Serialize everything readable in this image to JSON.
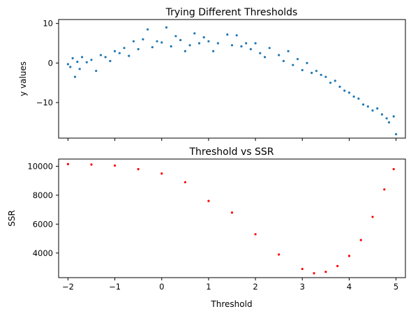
{
  "chart_data": [
    {
      "type": "scatter",
      "title": "Trying Different Thresholds",
      "xlabel": "",
      "ylabel": "y values",
      "xlim": [
        -2.2,
        5.2
      ],
      "ylim": [
        -19,
        11
      ],
      "xticks": [
        -2,
        -1,
        0,
        1,
        2,
        3,
        4,
        5
      ],
      "xtick_labels_visible": false,
      "yticks": [
        -10,
        0,
        10
      ],
      "ytick_labels": [
        "−10",
        "0",
        "10"
      ],
      "grid": false,
      "marker_color": "#1f77b4",
      "trend": "noisy inverted parabola: y ≈ 5.5 − 0.75·(x − 1)², noise ±2.5",
      "points": [
        [
          -2.0,
          -0.3
        ],
        [
          -1.95,
          -1.0
        ],
        [
          -1.9,
          1.2
        ],
        [
          -1.85,
          -3.5
        ],
        [
          -1.8,
          0.3
        ],
        [
          -1.75,
          -1.5
        ],
        [
          -1.7,
          1.5
        ],
        [
          -1.6,
          0.2
        ],
        [
          -1.5,
          0.8
        ],
        [
          -1.4,
          -2.0
        ],
        [
          -1.3,
          2.0
        ],
        [
          -1.2,
          1.5
        ],
        [
          -1.1,
          0.5
        ],
        [
          -1.0,
          3.0
        ],
        [
          -0.9,
          2.5
        ],
        [
          -0.8,
          3.8
        ],
        [
          -0.7,
          1.8
        ],
        [
          -0.6,
          5.5
        ],
        [
          -0.5,
          3.5
        ],
        [
          -0.4,
          6.0
        ],
        [
          -0.3,
          8.5
        ],
        [
          -0.2,
          4.0
        ],
        [
          -0.1,
          5.5
        ],
        [
          0.0,
          5.2
        ],
        [
          0.1,
          9.0
        ],
        [
          0.2,
          4.2
        ],
        [
          0.3,
          6.8
        ],
        [
          0.4,
          5.8
        ],
        [
          0.5,
          3.0
        ],
        [
          0.6,
          4.5
        ],
        [
          0.7,
          7.5
        ],
        [
          0.8,
          5.0
        ],
        [
          0.9,
          6.5
        ],
        [
          1.0,
          5.5
        ],
        [
          1.1,
          3.0
        ],
        [
          1.2,
          5.0
        ],
        [
          1.4,
          7.2
        ],
        [
          1.5,
          4.5
        ],
        [
          1.6,
          7.0
        ],
        [
          1.7,
          4.2
        ],
        [
          1.8,
          5.0
        ],
        [
          1.9,
          3.5
        ],
        [
          2.0,
          5.0
        ],
        [
          2.1,
          2.5
        ],
        [
          2.2,
          1.5
        ],
        [
          2.3,
          3.8
        ],
        [
          2.5,
          2.0
        ],
        [
          2.6,
          0.5
        ],
        [
          2.7,
          3.0
        ],
        [
          2.8,
          -0.5
        ],
        [
          2.9,
          1.0
        ],
        [
          3.0,
          -1.8
        ],
        [
          3.1,
          0.0
        ],
        [
          3.2,
          -2.5
        ],
        [
          3.3,
          -2.0
        ],
        [
          3.4,
          -3.0
        ],
        [
          3.5,
          -3.5
        ],
        [
          3.6,
          -5.0
        ],
        [
          3.7,
          -4.5
        ],
        [
          3.8,
          -6.0
        ],
        [
          3.9,
          -7.0
        ],
        [
          4.0,
          -7.5
        ],
        [
          4.1,
          -8.5
        ],
        [
          4.2,
          -9.0
        ],
        [
          4.3,
          -10.5
        ],
        [
          4.4,
          -11.0
        ],
        [
          4.5,
          -12.0
        ],
        [
          4.6,
          -11.5
        ],
        [
          4.7,
          -13.0
        ],
        [
          4.8,
          -14.0
        ],
        [
          4.85,
          -15.0
        ],
        [
          4.95,
          -13.5
        ],
        [
          5.0,
          -18.0
        ]
      ]
    },
    {
      "type": "scatter",
      "title": "Threshold vs SSR",
      "xlabel": "Threshold",
      "ylabel": "SSR",
      "xlim": [
        -2.2,
        5.2
      ],
      "ylim": [
        2300,
        10500
      ],
      "xticks": [
        -2,
        -1,
        0,
        1,
        2,
        3,
        4,
        5
      ],
      "xtick_labels": [
        "−2",
        "−1",
        "0",
        "1",
        "2",
        "3",
        "4",
        "5"
      ],
      "yticks": [
        4000,
        6000,
        8000,
        10000
      ],
      "ytick_labels": [
        "4000",
        "6000",
        "8000",
        "10000"
      ],
      "grid": false,
      "marker_color": "#ff0000",
      "points": [
        [
          -2.0,
          10150
        ],
        [
          -1.5,
          10120
        ],
        [
          -1.0,
          10050
        ],
        [
          -0.5,
          9800
        ],
        [
          0.0,
          9500
        ],
        [
          0.5,
          8900
        ],
        [
          1.0,
          7600
        ],
        [
          1.5,
          6800
        ],
        [
          2.0,
          5300
        ],
        [
          2.5,
          3900
        ],
        [
          3.0,
          2900
        ],
        [
          3.25,
          2600
        ],
        [
          3.5,
          2700
        ],
        [
          3.75,
          3100
        ],
        [
          4.0,
          3800
        ],
        [
          4.25,
          4900
        ],
        [
          4.5,
          6500
        ],
        [
          4.75,
          8400
        ],
        [
          4.95,
          9800
        ]
      ]
    }
  ]
}
